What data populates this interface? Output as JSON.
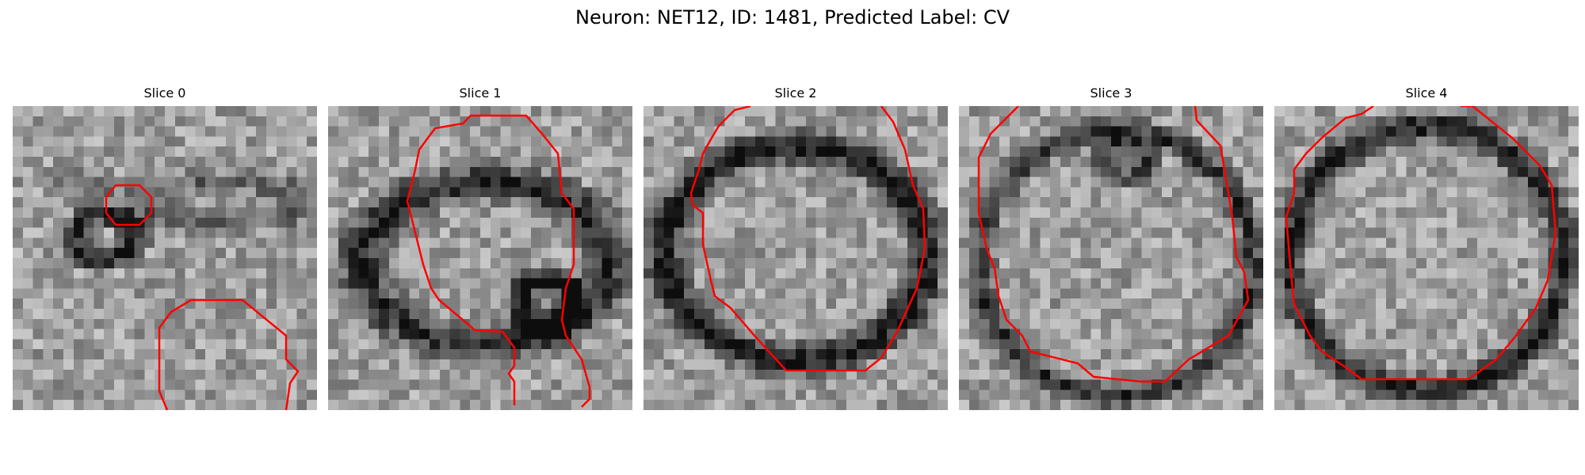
{
  "figure": {
    "title": "Neuron: NET12, ID: 1481, Predicted Label: CV",
    "contour_color": "#ff0000",
    "colormap": "gray",
    "slices": [
      {
        "label": "Slice 0"
      },
      {
        "label": "Slice 1"
      },
      {
        "label": "Slice 2"
      },
      {
        "label": "Slice 3"
      },
      {
        "label": "Slice 4"
      }
    ]
  }
}
